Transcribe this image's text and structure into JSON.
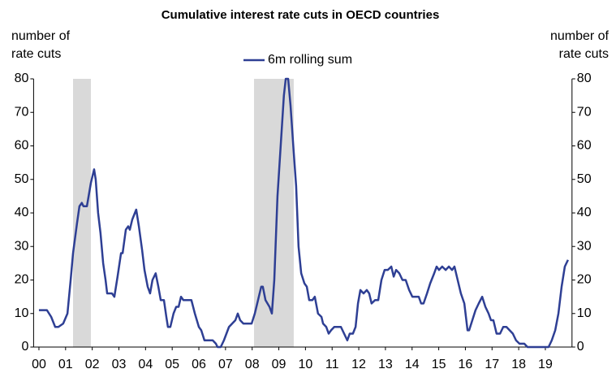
{
  "chart_data": {
    "type": "line",
    "title": "Cumulative interest rate cuts in OECD countries",
    "y_label": [
      "number of",
      "rate cuts"
    ],
    "y2_label": [
      "number of",
      "rate cuts"
    ],
    "xlim": [
      1999.8,
      2020.0
    ],
    "xticks": [
      {
        "value": 2000,
        "label": "00"
      },
      {
        "value": 2001,
        "label": "01"
      },
      {
        "value": 2002,
        "label": "02"
      },
      {
        "value": 2003,
        "label": "03"
      },
      {
        "value": 2004,
        "label": "04"
      },
      {
        "value": 2005,
        "label": "05"
      },
      {
        "value": 2006,
        "label": "06"
      },
      {
        "value": 2007,
        "label": "07"
      },
      {
        "value": 2008,
        "label": "08"
      },
      {
        "value": 2009,
        "label": "09"
      },
      {
        "value": 2010,
        "label": "10"
      },
      {
        "value": 2011,
        "label": "11"
      },
      {
        "value": 2012,
        "label": "12"
      },
      {
        "value": 2013,
        "label": "13"
      },
      {
        "value": 2014,
        "label": "14"
      },
      {
        "value": 2015,
        "label": "15"
      },
      {
        "value": 2016,
        "label": "16"
      },
      {
        "value": 2017,
        "label": "17"
      },
      {
        "value": 2018,
        "label": "18"
      },
      {
        "value": 2019,
        "label": "19"
      }
    ],
    "ylim": [
      0,
      80
    ],
    "yticks": [
      0,
      10,
      20,
      30,
      40,
      50,
      60,
      70,
      80
    ],
    "y2lim": [
      0,
      80
    ],
    "y2ticks": [
      0,
      10,
      20,
      30,
      40,
      50,
      60,
      70,
      80
    ],
    "shaded": [
      [
        2001.28,
        2001.95
      ],
      [
        2008.07,
        2009.56
      ]
    ],
    "shade_color": "#d9d9d9",
    "legend": "top",
    "x": [
      2000.0,
      2000.3,
      2000.46,
      2000.61,
      2000.73,
      2000.91,
      2001.07,
      2001.19,
      2001.28,
      2001.43,
      2001.52,
      2001.61,
      2001.67,
      2001.8,
      2001.95,
      2002.07,
      2002.13,
      2002.22,
      2002.31,
      2002.41,
      2002.5,
      2002.56,
      2002.74,
      2002.83,
      2002.95,
      2003.08,
      2003.14,
      2003.26,
      2003.35,
      2003.41,
      2003.5,
      2003.65,
      2003.75,
      2003.87,
      2003.96,
      2004.08,
      2004.17,
      2004.26,
      2004.38,
      2004.48,
      2004.57,
      2004.69,
      2004.78,
      2004.84,
      2004.93,
      2005.05,
      2005.15,
      2005.24,
      2005.33,
      2005.42,
      2005.72,
      2005.85,
      2006.0,
      2006.09,
      2006.21,
      2006.52,
      2006.64,
      2006.7,
      2006.82,
      2006.94,
      2007.13,
      2007.25,
      2007.37,
      2007.46,
      2007.55,
      2007.67,
      2007.98,
      2008.1,
      2008.22,
      2008.34,
      2008.4,
      2008.5,
      2008.65,
      2008.74,
      2008.83,
      2008.95,
      2009.07,
      2009.19,
      2009.26,
      2009.35,
      2009.44,
      2009.56,
      2009.65,
      2009.74,
      2009.84,
      2009.96,
      2010.05,
      2010.14,
      2010.26,
      2010.35,
      2010.47,
      2010.6,
      2010.66,
      2010.78,
      2010.87,
      2010.96,
      2011.08,
      2011.33,
      2011.45,
      2011.57,
      2011.66,
      2011.78,
      2011.88,
      2011.97,
      2012.06,
      2012.18,
      2012.3,
      2012.39,
      2012.48,
      2012.61,
      2012.73,
      2012.85,
      2012.97,
      2013.09,
      2013.22,
      2013.31,
      2013.4,
      2013.52,
      2013.64,
      2013.76,
      2013.89,
      2014.01,
      2014.25,
      2014.34,
      2014.43,
      2014.56,
      2014.68,
      2014.83,
      2014.92,
      2015.01,
      2015.13,
      2015.26,
      2015.38,
      2015.5,
      2015.59,
      2015.71,
      2015.83,
      2015.96,
      2016.08,
      2016.14,
      2016.26,
      2016.38,
      2016.5,
      2016.63,
      2016.75,
      2016.87,
      2016.96,
      2017.05,
      2017.17,
      2017.3,
      2017.42,
      2017.54,
      2017.66,
      2017.78,
      2017.9,
      2018.03,
      2018.21,
      2018.33,
      2019.12,
      2019.24,
      2019.37,
      2019.49,
      2019.61,
      2019.73,
      2019.85
    ],
    "series": [
      {
        "name": "6m rolling sum",
        "color": "#2e3f94",
        "values": [
          11,
          11,
          9,
          6,
          6,
          7,
          10,
          20,
          28,
          37,
          42,
          43,
          42,
          42,
          49,
          53,
          50,
          40,
          34,
          25,
          20,
          16,
          16,
          15,
          21,
          28,
          28,
          35,
          36,
          35,
          38,
          41,
          36,
          29,
          23,
          18,
          16,
          20,
          22,
          18,
          14,
          14,
          9,
          6,
          6,
          10,
          12,
          12,
          15,
          14,
          14,
          10,
          6,
          5,
          2,
          2,
          1,
          0,
          0,
          2,
          6,
          7,
          8,
          10,
          8,
          7,
          7,
          10,
          14,
          18,
          18,
          14,
          12,
          10,
          20,
          45,
          60,
          75,
          80,
          80,
          72,
          58,
          48,
          30,
          22,
          19,
          18,
          14,
          14,
          15,
          10,
          9,
          7,
          6,
          4,
          5,
          6,
          6,
          4,
          2,
          4,
          4,
          6,
          13,
          17,
          16,
          17,
          16,
          13,
          14,
          14,
          20,
          23,
          23,
          24,
          21,
          23,
          22,
          20,
          20,
          17,
          15,
          15,
          13,
          13,
          16,
          19,
          22,
          24,
          23,
          24,
          23,
          24,
          23,
          24,
          20,
          16,
          13,
          5,
          5,
          8,
          11,
          13,
          15,
          12,
          10,
          8,
          8,
          4,
          4,
          6,
          6,
          5,
          4,
          2,
          1,
          1,
          0,
          0,
          2,
          5,
          10,
          18,
          24,
          26
        ]
      }
    ]
  }
}
